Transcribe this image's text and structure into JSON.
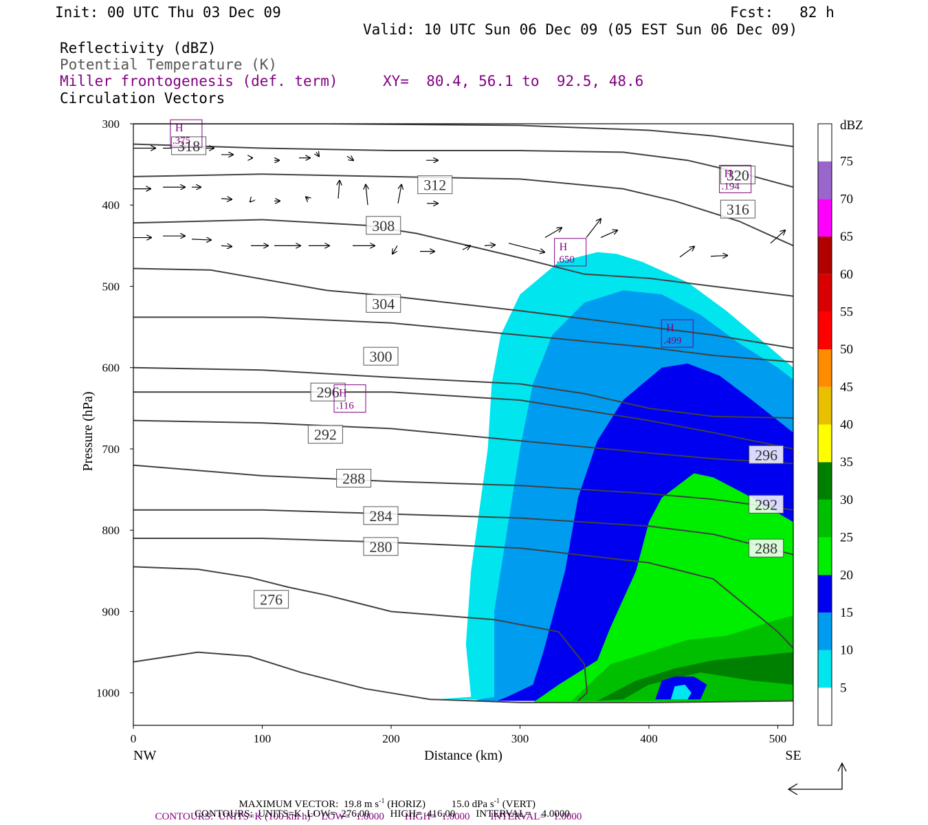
{
  "header": {
    "init": "Init: 00 UTC Thu 03 Dec 09",
    "fcst": "Fcst:   82 h",
    "valid": "Valid: 10 UTC Sun 06 Dec 09 (05 EST Sun 06 Dec 09)",
    "field1": "Reflectivity (dBZ)",
    "field2": "Potential Temperature (K)",
    "field3": "Miller frontogenesis (def. term)",
    "xy": "XY=  80.4, 56.1 to  92.5, 48.6",
    "field4": "Circulation Vectors"
  },
  "footer": {
    "max_vector": "MAXIMUM VECTOR:  19.8 m s",
    "horiz": "(HORIZ)",
    "vert_value": "15.0 dPa s",
    "vert": "(VERT)",
    "exp": "-1",
    "contours1": "CONTOURS:  UNITS=K (100 km h)",
    "contours1_exp": "-1",
    "contours1_rest": "LOW=  1.0000        HIGH=  1.0000        INTERVAL=   1.0000",
    "contours2": "CONTOURS:  UNITS=K  LOW=  276.00        HIGH=  416.00        INTERVAL=    4.0000"
  },
  "colors": {
    "purple": "#800080",
    "theta_line": "#404040"
  },
  "chart_data": {
    "type": "heatmap",
    "xlabel": "Distance (km)",
    "ylabel": "Pressure (hPa)",
    "xlim": [
      0,
      512
    ],
    "ylim": [
      1040,
      300
    ],
    "x_ticks": [
      0,
      100,
      200,
      300,
      400,
      500
    ],
    "y_ticks": [
      300,
      400,
      500,
      600,
      700,
      800,
      900,
      1000
    ],
    "x_end_labels": {
      "left": "NW",
      "right": "SE"
    },
    "colorbar": {
      "unit": "dBZ",
      "levels": [
        5,
        10,
        15,
        20,
        25,
        30,
        35,
        40,
        45,
        50,
        55,
        60,
        65,
        70,
        75
      ],
      "colors": [
        "#00e5ee",
        "#009cf0",
        "#0000f0",
        "#00ee00",
        "#00bf00",
        "#008000",
        "#ffff00",
        "#e8c000",
        "#ff8c00",
        "#ff0000",
        "#d80000",
        "#b00000",
        "#ff00ff",
        "#9966cc",
        "#ffffff"
      ]
    },
    "reflectivity_regions": [
      {
        "level": 5,
        "points": [
          [
            235,
            1008
          ],
          [
            262,
            1005
          ],
          [
            258,
            940
          ],
          [
            262,
            850
          ],
          [
            268,
            780
          ],
          [
            275,
            700
          ],
          [
            278,
            620
          ],
          [
            285,
            560
          ],
          [
            300,
            510
          ],
          [
            330,
            470
          ],
          [
            360,
            458
          ],
          [
            375,
            460
          ],
          [
            395,
            470
          ],
          [
            430,
            495
          ],
          [
            460,
            530
          ],
          [
            490,
            570
          ],
          [
            512,
            600
          ],
          [
            512,
            1010
          ]
        ]
      },
      {
        "level": 10,
        "points": [
          [
            262,
            1010
          ],
          [
            280,
            1005
          ],
          [
            280,
            900
          ],
          [
            290,
            800
          ],
          [
            300,
            700
          ],
          [
            310,
            620
          ],
          [
            325,
            560
          ],
          [
            350,
            520
          ],
          [
            380,
            505
          ],
          [
            410,
            510
          ],
          [
            440,
            535
          ],
          [
            470,
            570
          ],
          [
            500,
            600
          ],
          [
            512,
            615
          ],
          [
            512,
            1010
          ]
        ]
      },
      {
        "level": 15,
        "points": [
          [
            282,
            1010
          ],
          [
            290,
            1005
          ],
          [
            310,
            990
          ],
          [
            318,
            950
          ],
          [
            335,
            850
          ],
          [
            345,
            760
          ],
          [
            360,
            690
          ],
          [
            380,
            640
          ],
          [
            410,
            600
          ],
          [
            430,
            595
          ],
          [
            455,
            610
          ],
          [
            480,
            640
          ],
          [
            512,
            680
          ],
          [
            512,
            1010
          ]
        ]
      },
      {
        "level": 20,
        "points": [
          [
            310,
            1012
          ],
          [
            330,
            990
          ],
          [
            360,
            960
          ],
          [
            370,
            920
          ],
          [
            390,
            850
          ],
          [
            400,
            790
          ],
          [
            410,
            760
          ],
          [
            435,
            730
          ],
          [
            450,
            735
          ],
          [
            480,
            760
          ],
          [
            512,
            790
          ],
          [
            512,
            1010
          ]
        ]
      },
      {
        "level": 25,
        "points": [
          [
            340,
            1010
          ],
          [
            370,
            965
          ],
          [
            400,
            950
          ],
          [
            430,
            935
          ],
          [
            460,
            930
          ],
          [
            480,
            920
          ],
          [
            500,
            910
          ],
          [
            512,
            905
          ],
          [
            512,
            1010
          ]
        ]
      },
      {
        "level": 30,
        "points": [
          [
            360,
            1010
          ],
          [
            390,
            985
          ],
          [
            420,
            970
          ],
          [
            450,
            960
          ],
          [
            480,
            955
          ],
          [
            512,
            950
          ],
          [
            512,
            990
          ],
          [
            480,
            985
          ],
          [
            440,
            975
          ],
          [
            400,
            990
          ],
          [
            380,
            1008
          ]
        ]
      },
      {
        "level": 15,
        "points": [
          [
            405,
            1008
          ],
          [
            410,
            985
          ],
          [
            420,
            980
          ],
          [
            435,
            980
          ],
          [
            445,
            990
          ],
          [
            440,
            1008
          ]
        ]
      },
      {
        "level": 5,
        "points": [
          [
            417,
            1008
          ],
          [
            420,
            992
          ],
          [
            428,
            990
          ],
          [
            433,
            1000
          ],
          [
            430,
            1008
          ]
        ]
      }
    ],
    "theta_contours": [
      {
        "label": "276",
        "points": [
          [
            0,
            962
          ],
          [
            50,
            950
          ],
          [
            90,
            955
          ],
          [
            130,
            975
          ],
          [
            180,
            995
          ],
          [
            230,
            1008
          ],
          [
            300,
            1012
          ],
          [
            400,
            1012
          ],
          [
            512,
            1010
          ]
        ]
      },
      {
        "label": "280",
        "points": [
          [
            0,
            845
          ],
          [
            50,
            848
          ],
          [
            90,
            858
          ],
          [
            120,
            870
          ],
          [
            150,
            880
          ],
          [
            200,
            900
          ],
          [
            280,
            910
          ],
          [
            330,
            925
          ],
          [
            350,
            965
          ],
          [
            352,
            1000
          ],
          [
            345,
            1010
          ]
        ]
      },
      {
        "label": "280",
        "points": [
          [
            0,
            810
          ],
          [
            100,
            810
          ],
          [
            200,
            815
          ],
          [
            300,
            822
          ],
          [
            400,
            840
          ],
          [
            450,
            860
          ],
          [
            500,
            925
          ],
          [
            512,
            945
          ]
        ]
      },
      {
        "label": "284",
        "points": [
          [
            0,
            775
          ],
          [
            100,
            775
          ],
          [
            200,
            780
          ],
          [
            300,
            785
          ],
          [
            400,
            795
          ],
          [
            450,
            805
          ],
          [
            512,
            830
          ]
        ]
      },
      {
        "label": "288",
        "points": [
          [
            0,
            720
          ],
          [
            100,
            733
          ],
          [
            200,
            740
          ],
          [
            300,
            745
          ],
          [
            400,
            755
          ],
          [
            450,
            762
          ],
          [
            512,
            775
          ]
        ]
      },
      {
        "label": "292",
        "points": [
          [
            0,
            665
          ],
          [
            100,
            668
          ],
          [
            200,
            675
          ],
          [
            300,
            690
          ],
          [
            400,
            705
          ],
          [
            450,
            712
          ],
          [
            512,
            718
          ]
        ]
      },
      {
        "label": "296",
        "points": [
          [
            0,
            630
          ],
          [
            100,
            630
          ],
          [
            200,
            630
          ],
          [
            300,
            640
          ],
          [
            400,
            665
          ],
          [
            450,
            680
          ],
          [
            512,
            700
          ]
        ]
      },
      {
        "label": "300",
        "points": [
          [
            0,
            600
          ],
          [
            100,
            603
          ],
          [
            200,
            612
          ],
          [
            300,
            620
          ],
          [
            350,
            632
          ],
          [
            400,
            650
          ],
          [
            450,
            660
          ],
          [
            512,
            662
          ]
        ]
      },
      {
        "label": "300",
        "points": [
          [
            0,
            538
          ],
          [
            100,
            538
          ],
          [
            200,
            545
          ],
          [
            300,
            560
          ],
          [
            400,
            575
          ],
          [
            450,
            585
          ],
          [
            512,
            593
          ]
        ]
      },
      {
        "label": "304",
        "points": [
          [
            0,
            478
          ],
          [
            60,
            480
          ],
          [
            150,
            505
          ],
          [
            200,
            512
          ],
          [
            300,
            530
          ],
          [
            400,
            550
          ],
          [
            450,
            560
          ],
          [
            512,
            576
          ]
        ]
      },
      {
        "label": "308",
        "points": [
          [
            0,
            422
          ],
          [
            100,
            418
          ],
          [
            180,
            425
          ],
          [
            220,
            435
          ],
          [
            260,
            450
          ],
          [
            300,
            465
          ],
          [
            350,
            485
          ],
          [
            400,
            490
          ],
          [
            450,
            500
          ],
          [
            512,
            512
          ]
        ]
      },
      {
        "label": "312",
        "points": [
          [
            0,
            365
          ],
          [
            100,
            362
          ],
          [
            200,
            365
          ],
          [
            300,
            368
          ],
          [
            380,
            380
          ],
          [
            420,
            395
          ],
          [
            470,
            420
          ],
          [
            512,
            450
          ]
        ]
      },
      {
        "label": "316",
        "points": [
          [
            0,
            325
          ],
          [
            100,
            330
          ],
          [
            200,
            333
          ],
          [
            300,
            333
          ],
          [
            380,
            335
          ],
          [
            430,
            345
          ],
          [
            470,
            360
          ],
          [
            512,
            378
          ]
        ]
      },
      {
        "label": "320",
        "points": [
          [
            0,
            300
          ],
          [
            150,
            300
          ],
          [
            300,
            302
          ],
          [
            400,
            308
          ],
          [
            450,
            315
          ],
          [
            512,
            328
          ]
        ]
      }
    ],
    "theta_labels": [
      {
        "text": "312",
        "x": 234,
        "p": 375
      },
      {
        "text": "308",
        "x": 194,
        "p": 425
      },
      {
        "text": "304",
        "x": 194,
        "p": 521
      },
      {
        "text": "300",
        "x": 192,
        "p": 586
      },
      {
        "text": "296",
        "x": 151,
        "p": 630
      },
      {
        "text": "292",
        "x": 149,
        "p": 682
      },
      {
        "text": "288",
        "x": 171,
        "p": 736
      },
      {
        "text": "284",
        "x": 192,
        "p": 782
      },
      {
        "text": "280",
        "x": 192,
        "p": 820
      },
      {
        "text": "276",
        "x": 107,
        "p": 885
      },
      {
        "text": "316",
        "x": 469,
        "p": 405
      },
      {
        "text": "320",
        "x": 469,
        "p": 363
      },
      {
        "text": "296",
        "x": 491,
        "p": 707
      },
      {
        "text": "292",
        "x": 491,
        "p": 768
      },
      {
        "text": "288",
        "x": 491,
        "p": 822
      },
      {
        "text": "318",
        "x": 43,
        "p": 327
      }
    ],
    "frontogenesis_maxima": [
      {
        "mark": "H",
        "value": ".375",
        "x": 41,
        "p": 312
      },
      {
        "mark": "H",
        "value": ".194",
        "x": 467,
        "p": 368
      },
      {
        "mark": "H",
        "value": ".650",
        "x": 339,
        "p": 458
      },
      {
        "mark": "H",
        "value": ".499",
        "x": 422,
        "p": 558
      },
      {
        "mark": "H",
        "value": ".116",
        "x": 168,
        "p": 638
      }
    ],
    "vectors": [
      [
        0,
        330,
        32,
        330
      ],
      [
        43,
        330,
        75,
        330
      ],
      [
        85,
        330,
        117,
        330
      ],
      [
        128,
        338,
        145,
        338
      ],
      [
        171,
        342,
        173,
        342
      ],
      [
        205,
        345,
        212,
        345
      ],
      [
        241,
        342,
        257,
        342
      ],
      [
        266,
        335,
        270,
        340
      ],
      [
        311,
        340,
        320,
        345
      ],
      [
        426,
        345,
        443,
        345
      ],
      [
        0,
        380,
        25,
        380
      ],
      [
        43,
        378,
        75,
        378
      ],
      [
        85,
        378,
        98,
        378
      ],
      [
        128,
        392,
        143,
        393
      ],
      [
        171,
        395,
        170,
        396
      ],
      [
        205,
        395,
        213,
        395
      ],
      [
        255,
        393,
        251,
        390
      ],
      [
        298,
        392,
        300,
        370
      ],
      [
        341,
        400,
        338,
        375
      ],
      [
        385,
        398,
        390,
        375
      ],
      [
        427,
        398,
        443,
        398
      ],
      [
        0,
        440,
        26,
        440
      ],
      [
        43,
        438,
        75,
        438
      ],
      [
        85,
        442,
        113,
        443
      ],
      [
        128,
        450,
        143,
        451
      ],
      [
        171,
        450,
        196,
        450
      ],
      [
        205,
        450,
        243,
        450
      ],
      [
        255,
        450,
        285,
        450
      ],
      [
        319,
        450,
        351,
        450
      ],
      [
        384,
        450,
        377,
        460
      ],
      [
        417,
        457,
        438,
        457
      ],
      [
        479,
        455,
        490,
        450
      ],
      [
        511,
        450,
        526,
        449
      ],
      [
        546,
        447,
        598,
        458
      ],
      [
        599,
        440,
        623,
        428
      ],
      [
        659,
        440,
        680,
        417
      ],
      [
        680,
        440,
        704,
        431
      ],
      [
        795,
        464,
        816,
        451
      ],
      [
        840,
        463,
        864,
        462
      ],
      [
        927,
        447,
        948,
        431
      ],
      [
        1001,
        452,
        1019,
        431
      ],
      [
        1081,
        459,
        1118,
        460
      ]
    ]
  }
}
